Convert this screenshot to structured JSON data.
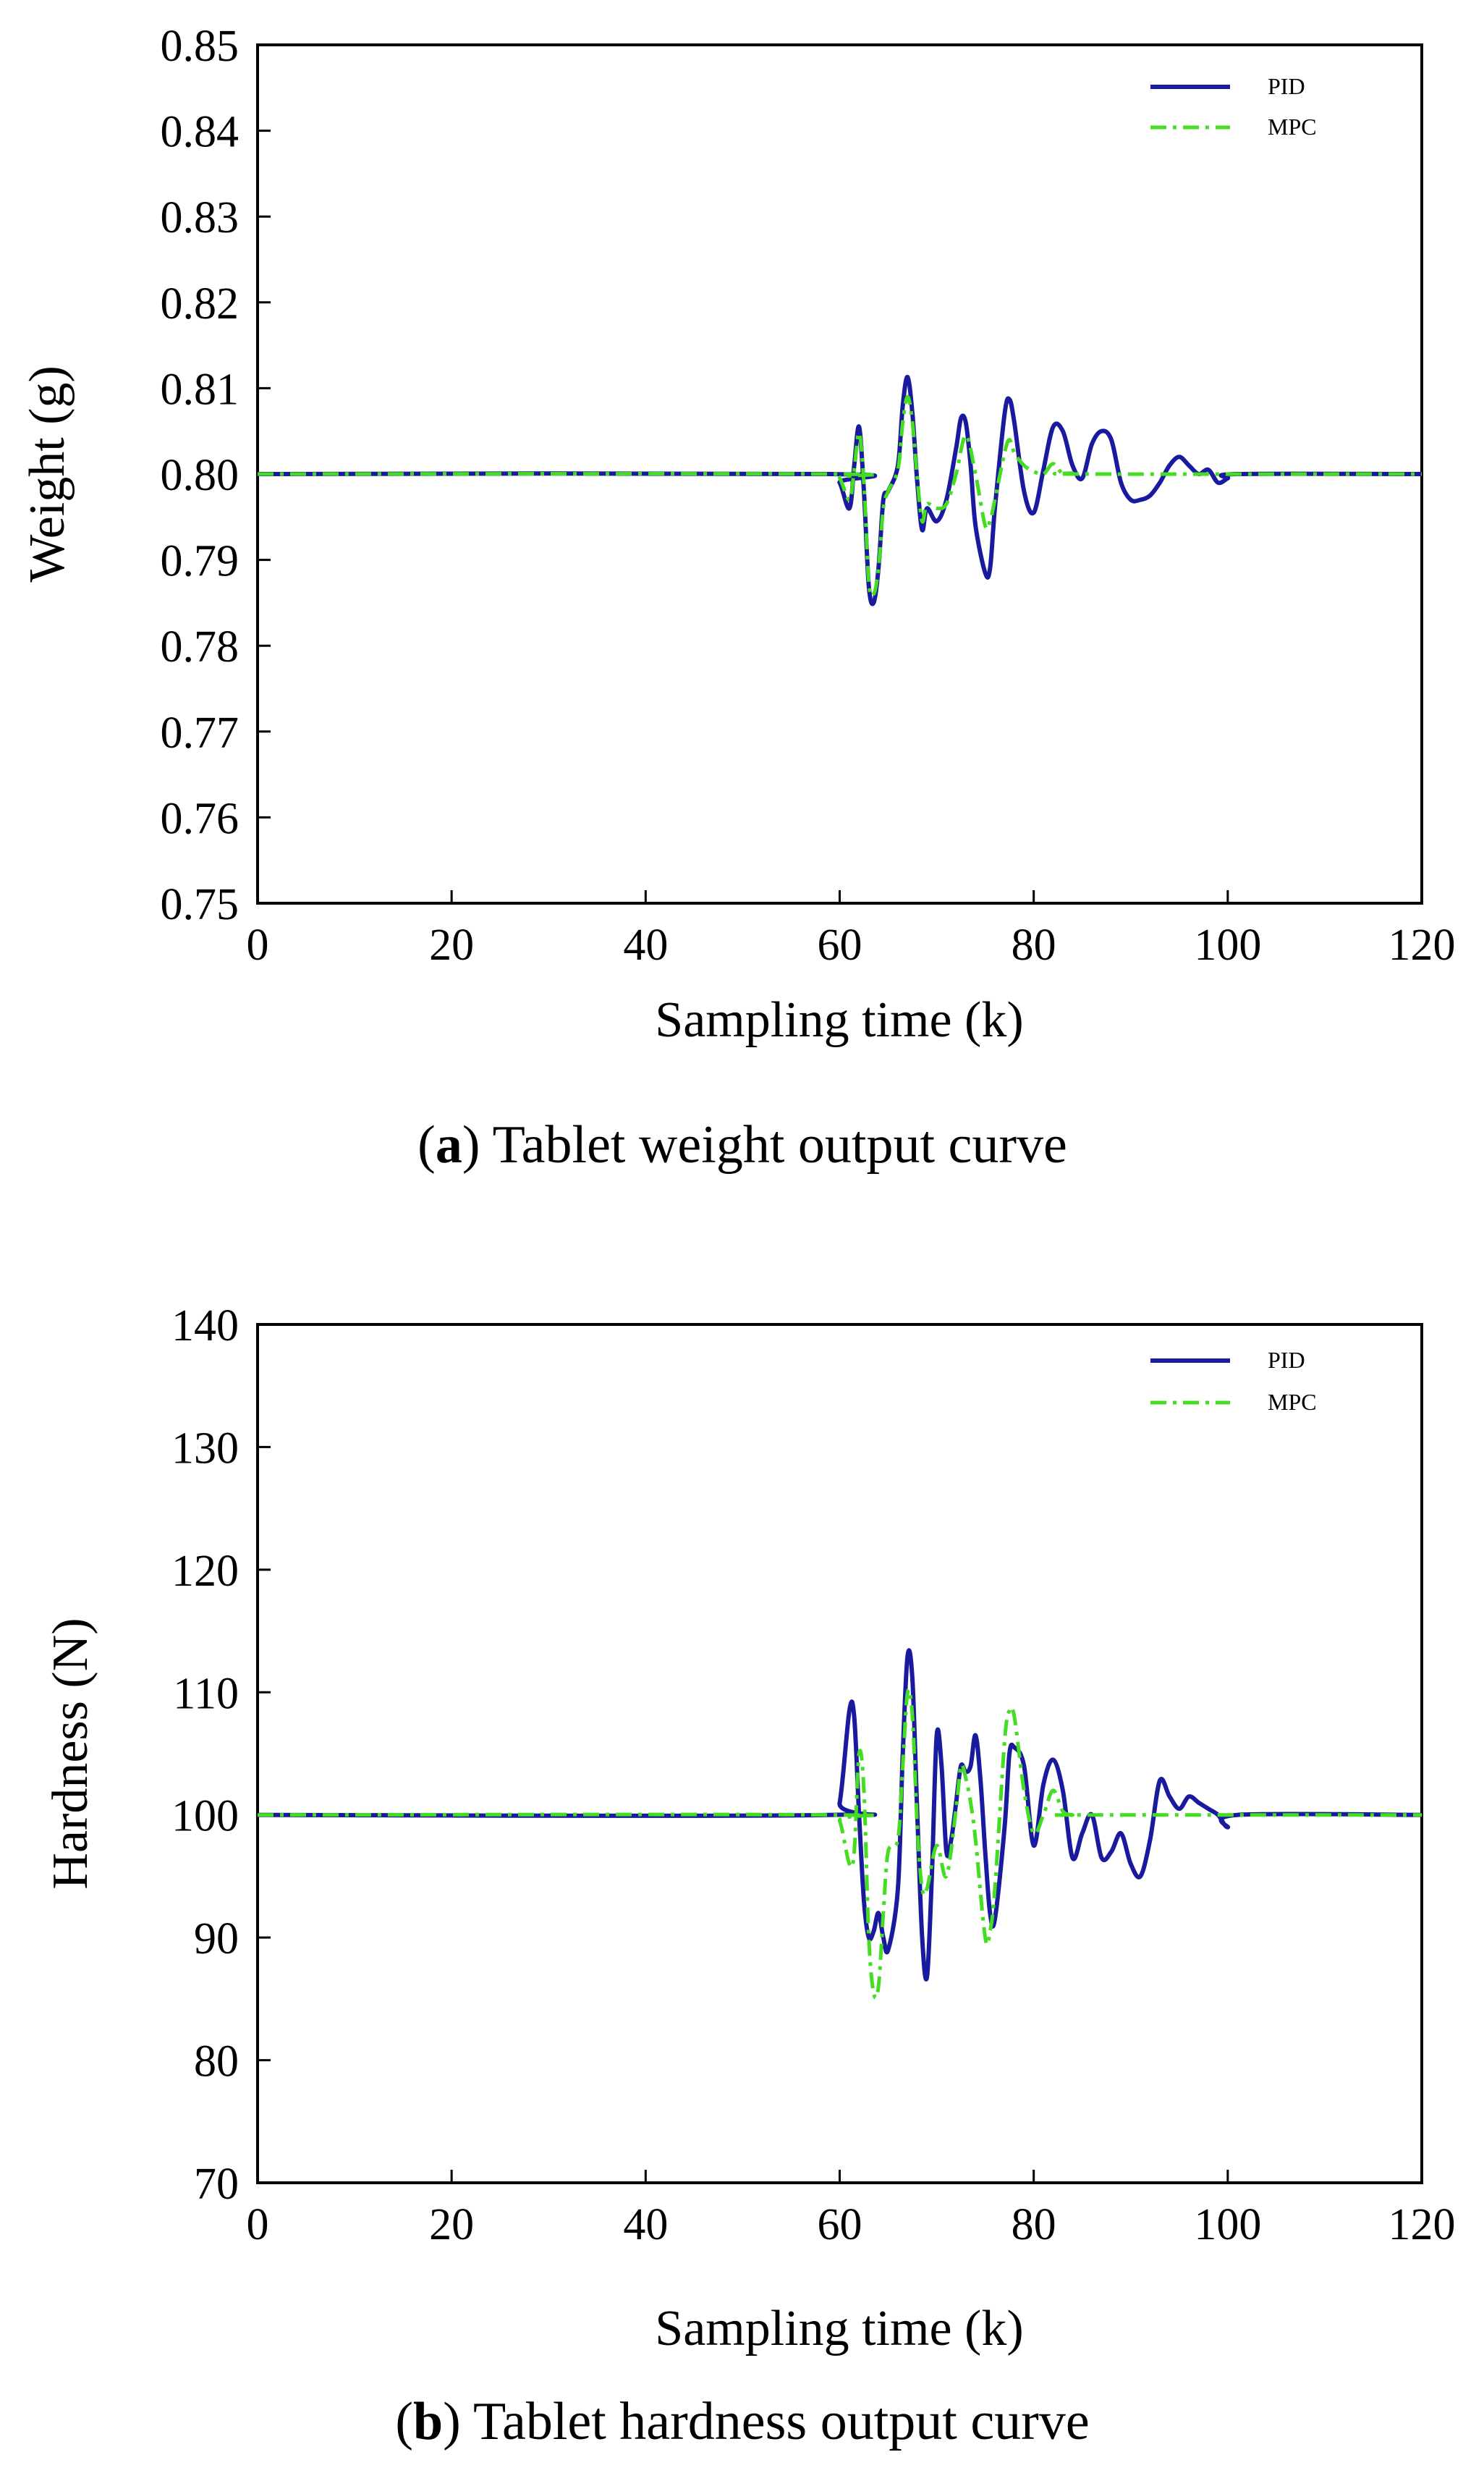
{
  "figure": {
    "panels": [
      {
        "caption_letter": "a",
        "caption_text": " Tablet weight output curve"
      },
      {
        "caption_letter": "b",
        "caption_text": " Tablet hardness output curve"
      }
    ]
  },
  "chart_data": [
    {
      "type": "line",
      "title": "",
      "xlabel": "Sampling time (k)",
      "ylabel": "Weight (g)",
      "xlim": [
        0,
        120
      ],
      "ylim": [
        0.75,
        0.85
      ],
      "xticks": [
        0,
        20,
        40,
        60,
        80,
        100,
        120
      ],
      "xtick_labels": [
        "0",
        "20",
        "40",
        "60",
        "80",
        "100",
        "120"
      ],
      "yticks": [
        0.75,
        0.76,
        0.77,
        0.78,
        0.79,
        0.8,
        0.81,
        0.82,
        0.83,
        0.84,
        0.85
      ],
      "ytick_labels": [
        "0.75",
        "0.76",
        "0.77",
        "0.78",
        "0.79",
        "0.80",
        "0.81",
        "0.82",
        "0.83",
        "0.84",
        "0.85"
      ],
      "legend_position": "top-right",
      "series": [
        {
          "name": "PID",
          "color": "#1a1a9e",
          "dash": "solid",
          "x": [
            0,
            59,
            60,
            61,
            61.5,
            62,
            62.5,
            63,
            63.5,
            64,
            64.5,
            65,
            66,
            66.5,
            67,
            67.5,
            68,
            68.5,
            69,
            70,
            71,
            72,
            72.5,
            73,
            73.5,
            74,
            75,
            75.5,
            76,
            77,
            77.5,
            78,
            79,
            80,
            81,
            82,
            83,
            84,
            85,
            86,
            87,
            88,
            89,
            90,
            91,
            92,
            93,
            94,
            95,
            96,
            97,
            98,
            99,
            100,
            101,
            120
          ],
          "y": [
            0.8,
            0.8,
            0.799,
            0.796,
            0.801,
            0.8055,
            0.798,
            0.787,
            0.785,
            0.789,
            0.797,
            0.798,
            0.801,
            0.808,
            0.8113,
            0.807,
            0.799,
            0.7935,
            0.796,
            0.7945,
            0.797,
            0.803,
            0.8065,
            0.806,
            0.801,
            0.794,
            0.7885,
            0.789,
            0.796,
            0.807,
            0.8087,
            0.806,
            0.798,
            0.7955,
            0.8005,
            0.8055,
            0.805,
            0.801,
            0.7995,
            0.8035,
            0.805,
            0.804,
            0.799,
            0.797,
            0.797,
            0.7975,
            0.799,
            0.801,
            0.802,
            0.801,
            0.8,
            0.8005,
            0.799,
            0.7995,
            0.8,
            0.8
          ]
        },
        {
          "name": "MPC",
          "color": "#44dd22",
          "dash": "dashdot",
          "x": [
            0,
            59,
            60,
            61,
            61.5,
            62,
            62.5,
            63,
            63.5,
            64,
            64.5,
            65,
            66,
            66.5,
            67,
            67.5,
            68,
            68.5,
            69,
            70,
            71,
            72,
            73,
            74,
            75,
            75.5,
            76,
            77,
            77.5,
            78,
            79,
            80,
            81,
            82,
            83,
            84,
            85,
            120
          ],
          "y": [
            0.8,
            0.8,
            0.7995,
            0.797,
            0.8005,
            0.8048,
            0.799,
            0.7875,
            0.786,
            0.789,
            0.796,
            0.798,
            0.8005,
            0.806,
            0.809,
            0.806,
            0.7995,
            0.7945,
            0.7965,
            0.796,
            0.7965,
            0.8,
            0.8045,
            0.8,
            0.794,
            0.7945,
            0.797,
            0.8025,
            0.804,
            0.8025,
            0.801,
            0.8003,
            0.8,
            0.8012,
            0.8,
            0.8001,
            0.8,
            0.8
          ]
        }
      ]
    },
    {
      "type": "line",
      "title": "",
      "xlabel": "Sampling time (k)",
      "ylabel": "Hardness (N)",
      "xlim": [
        0,
        120
      ],
      "ylim": [
        70,
        140
      ],
      "xticks": [
        0,
        20,
        40,
        60,
        80,
        100,
        120
      ],
      "xtick_labels": [
        "0",
        "20",
        "40",
        "60",
        "80",
        "100",
        "120"
      ],
      "yticks": [
        70,
        80,
        90,
        100,
        110,
        120,
        130,
        140
      ],
      "ytick_labels": [
        "70",
        "80",
        "90",
        "100",
        "110",
        "120",
        "130",
        "140"
      ],
      "legend_position": "top-right",
      "series": [
        {
          "name": "PID",
          "color": "#1a1a9e",
          "dash": "solid",
          "x": [
            0,
            59,
            60,
            61,
            61.5,
            62,
            62.5,
            63,
            63.5,
            64,
            64.5,
            65,
            66,
            66.5,
            67,
            67.5,
            68,
            68.5,
            69,
            69.5,
            70,
            70.5,
            71,
            71.5,
            72,
            72.5,
            73,
            73.5,
            74,
            74.5,
            75,
            75.5,
            76,
            77,
            77.5,
            78,
            79,
            80,
            81,
            82,
            83,
            84,
            85,
            86,
            87,
            88,
            89,
            90,
            91,
            92,
            93,
            94,
            95,
            96,
            97,
            98,
            99,
            100,
            101,
            120
          ],
          "y": [
            100,
            100,
            101,
            108.5,
            108,
            100,
            93,
            90,
            90.5,
            92,
            90,
            89,
            94,
            105,
            113,
            111,
            100,
            90,
            86.8,
            95,
            106.5,
            104,
            97,
            98,
            101,
            104,
            103.5,
            104,
            106.5,
            103,
            97,
            92,
            91.5,
            99,
            105,
            105.5,
            104,
            97.5,
            102.5,
            104.5,
            102,
            96.5,
            98.5,
            100,
            96.5,
            97,
            98.5,
            96,
            95,
            98,
            102.8,
            101.5,
            100.5,
            101.5,
            101,
            100.5,
            100,
            99,
            100,
            100
          ]
        },
        {
          "name": "MPC",
          "color": "#44dd22",
          "dash": "dashdot",
          "x": [
            0,
            59,
            60,
            61,
            61.5,
            62,
            62.5,
            63,
            63.5,
            64,
            64.5,
            65,
            66,
            66.5,
            67,
            67.5,
            68,
            68.5,
            69,
            70,
            71,
            72,
            72.5,
            73,
            73.5,
            74,
            75,
            75.5,
            76,
            77,
            77.5,
            78,
            79,
            80,
            81,
            82,
            83,
            84,
            85,
            120
          ],
          "y": [
            100,
            100,
            99.5,
            96,
            97,
            105,
            102,
            90,
            85.5,
            86,
            92,
            97,
            98,
            104,
            110,
            108,
            99,
            94,
            94,
            97.5,
            95,
            100.5,
            104,
            103,
            101,
            98,
            90,
            90.5,
            94,
            106,
            108.5,
            108,
            102,
            98.5,
            100,
            102,
            100.3,
            100,
            100,
            100
          ]
        }
      ]
    }
  ]
}
